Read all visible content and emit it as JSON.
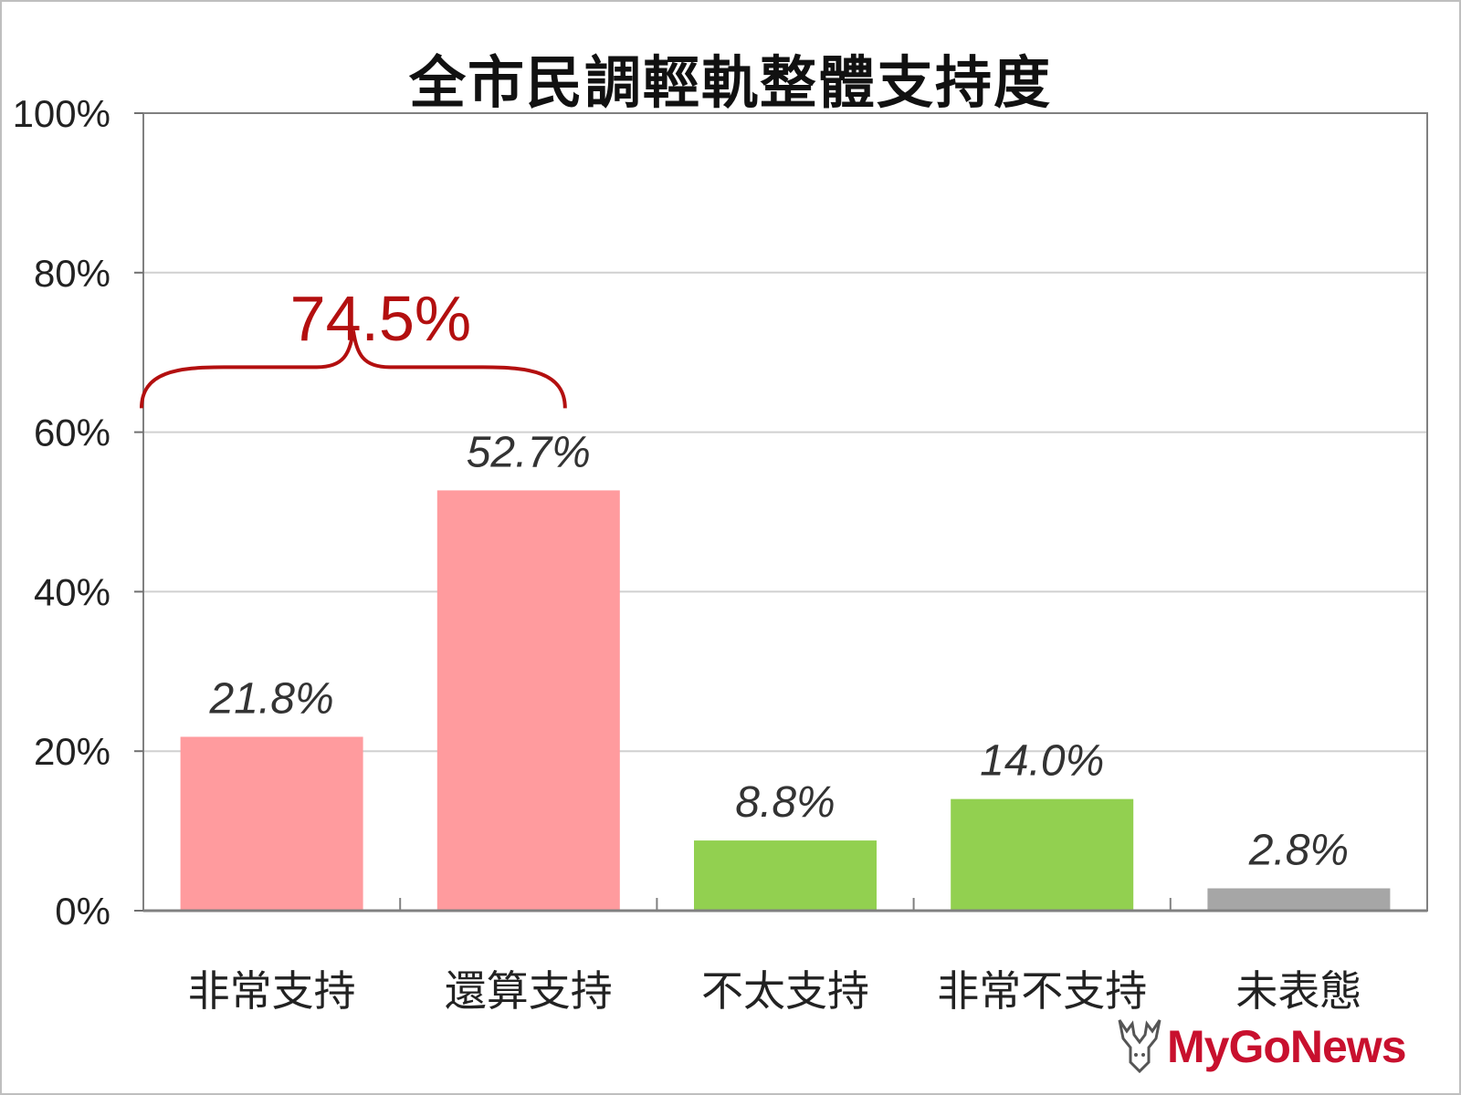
{
  "chart_data": {
    "type": "bar",
    "title": "全市民調輕軌整體支持度",
    "categories": [
      "非常支持",
      "還算支持",
      "不太支持",
      "非常不支持",
      "未表態"
    ],
    "values": [
      21.8,
      52.7,
      8.8,
      14.0,
      2.8
    ],
    "data_labels": [
      "21.8%",
      "52.7%",
      "8.8%",
      "14.0%",
      "2.8%"
    ],
    "bar_colors": [
      "#ff9b9e",
      "#ff9b9e",
      "#92d050",
      "#92d050",
      "#a6a6a6"
    ],
    "ylim": [
      0,
      100
    ],
    "y_ticks": [
      0,
      20,
      40,
      60,
      80,
      100
    ],
    "y_tick_labels": [
      "0%",
      "20%",
      "40%",
      "60%",
      "80%",
      "100%"
    ],
    "grid": true,
    "annotation": {
      "text": "74.5%",
      "spans_categories": [
        "非常支持",
        "還算支持"
      ],
      "color": "#b30f0f"
    }
  },
  "watermark": {
    "text": "MyGoNews",
    "color": "#c8102e",
    "icon": "deer-logo-icon"
  }
}
